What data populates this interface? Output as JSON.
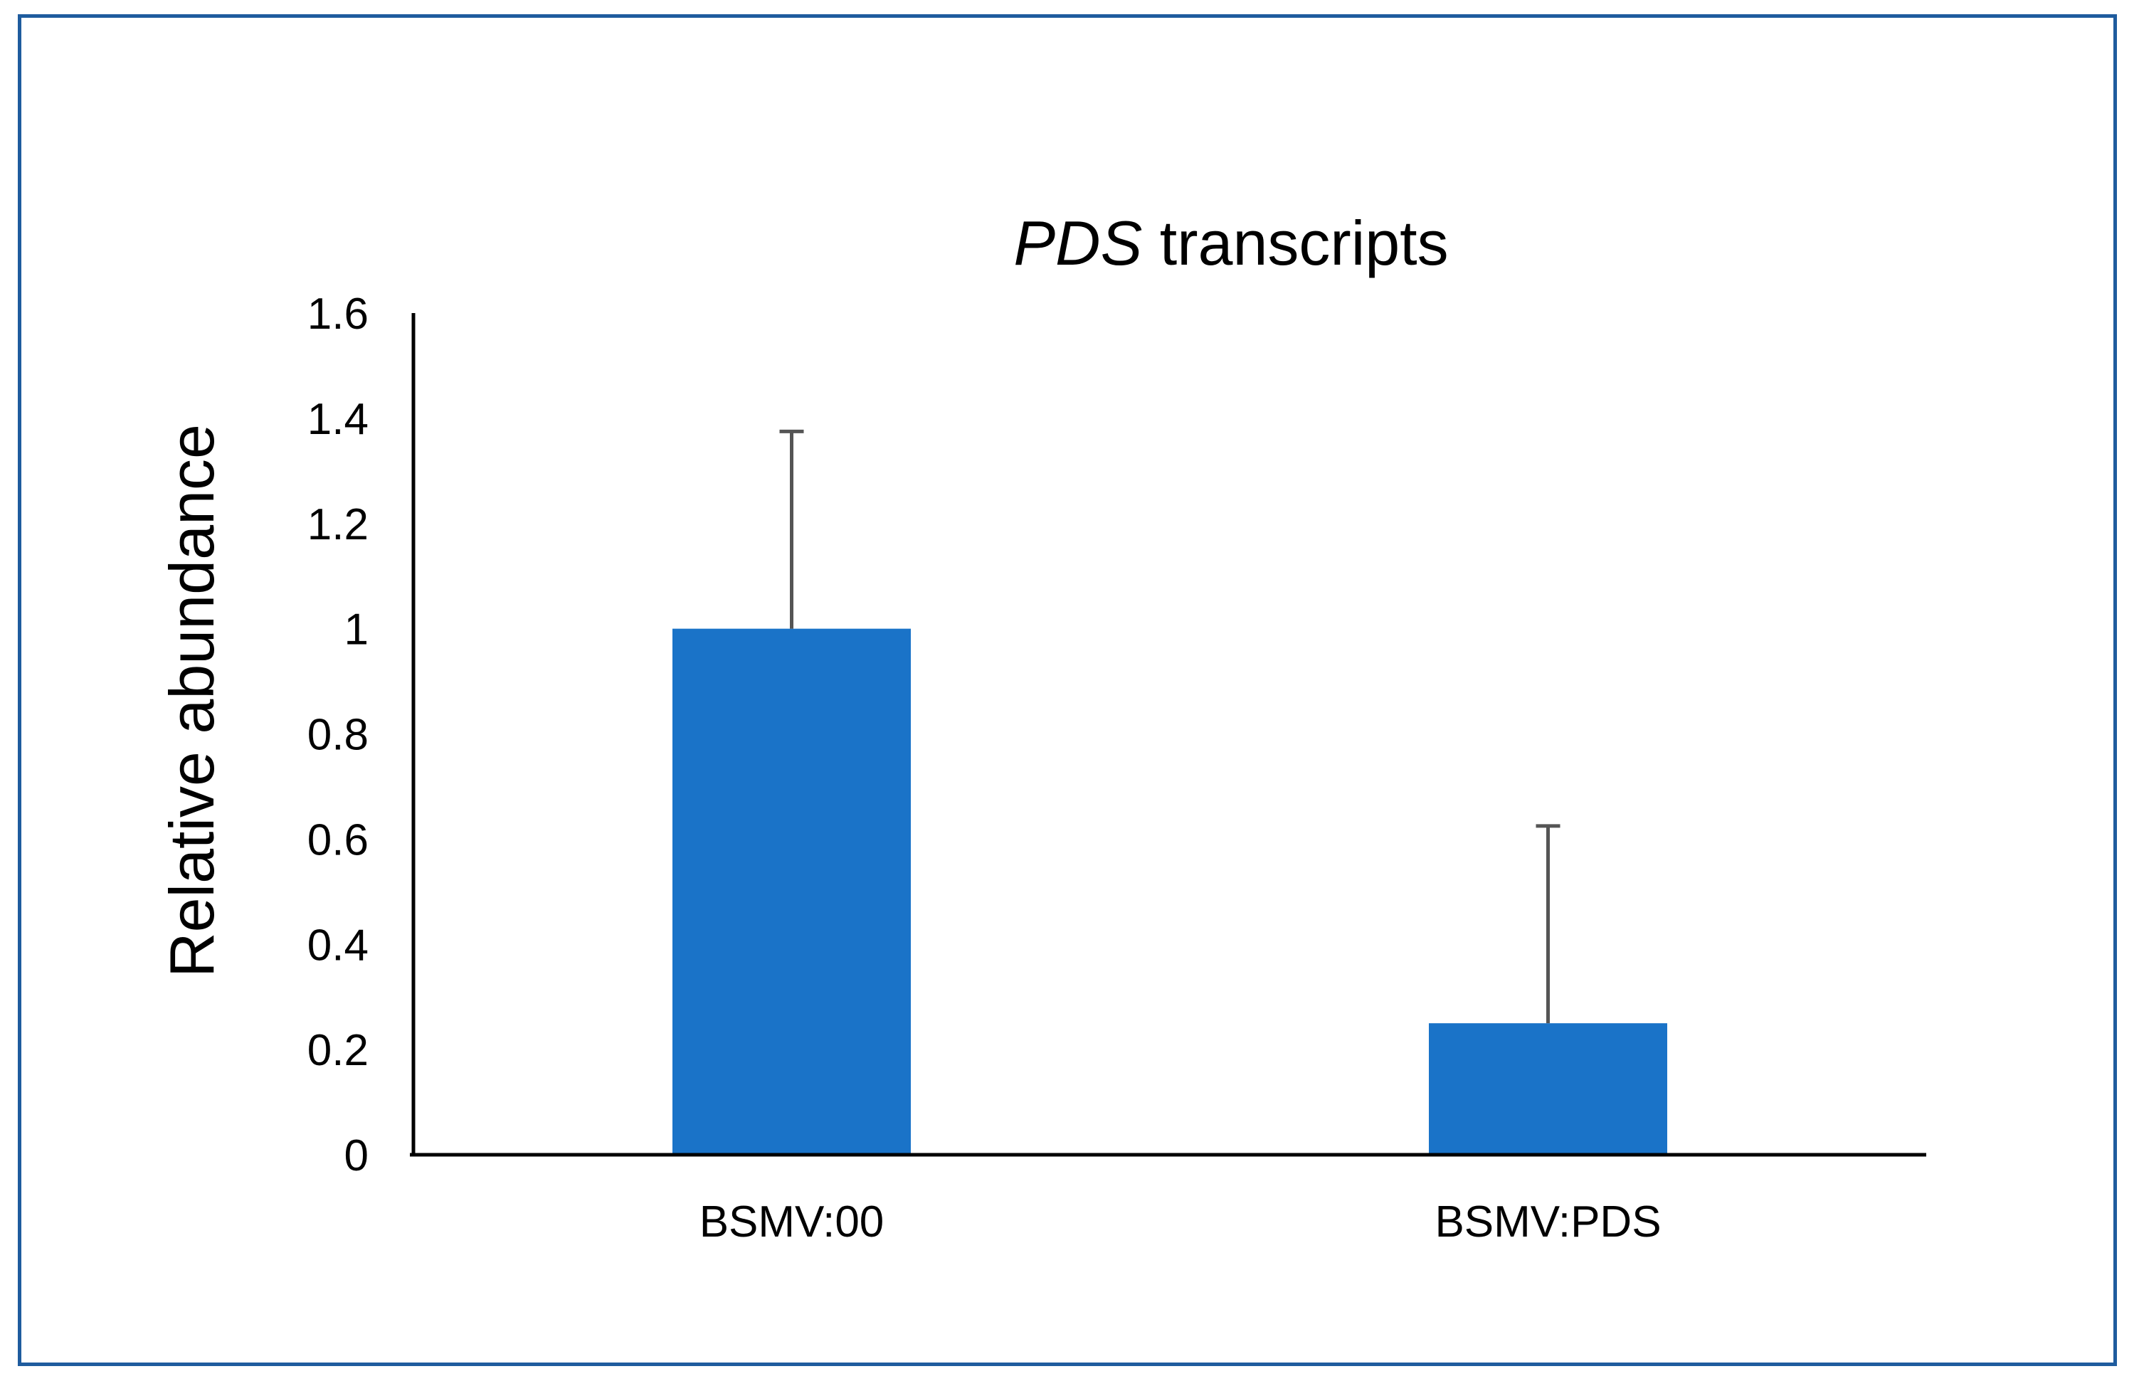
{
  "chart_data": {
    "type": "bar",
    "title_italic": "PDS",
    "title_rest": " transcripts",
    "xlabel": "",
    "ylabel": "Relative abundance",
    "categories": [
      "BSMV:00",
      "BSMV:PDS"
    ],
    "values": [
      1.0,
      0.25
    ],
    "error_upper": [
      0.375,
      0.375
    ],
    "ylim": [
      0,
      1.6
    ],
    "yticks": [
      0,
      0.2,
      0.4,
      0.6,
      0.8,
      1,
      1.2,
      1.4,
      1.6
    ],
    "ytick_labels": [
      "0",
      "0.2",
      "0.4",
      "0.6",
      "0.8",
      "1",
      "1.2",
      "1.4",
      "1.6"
    ],
    "grid": false,
    "legend": "none",
    "colors": {
      "bar": "#1a73c8",
      "error_bar": "#555555",
      "frame": "#1f5c9e",
      "axis": "#000000"
    }
  }
}
